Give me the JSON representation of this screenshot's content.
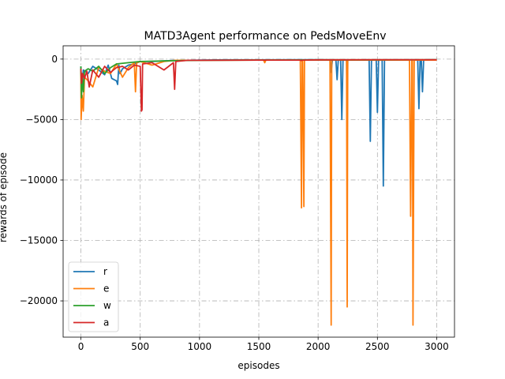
{
  "chart_data": {
    "type": "line",
    "title": "MATD3Agent performance on PedsMoveEnv",
    "xlabel": "episodes",
    "ylabel": "rewards of episode",
    "xlim": [
      -150,
      3150
    ],
    "ylim": [
      -23000,
      1100
    ],
    "xticks": [
      0,
      500,
      1000,
      1500,
      2000,
      2500,
      3000
    ],
    "yticks": [
      0,
      -5000,
      -10000,
      -15000,
      -20000
    ],
    "grid": true,
    "grid_style": "dashdot",
    "legend_position": "lower-left",
    "series": [
      {
        "name": "r",
        "color": "#1f77b4",
        "x": [
          0,
          5,
          20,
          60,
          100,
          150,
          200,
          230,
          260,
          300,
          310,
          320,
          330,
          350,
          400,
          450,
          500,
          600,
          700,
          800,
          900,
          1000,
          1200,
          1500,
          1800,
          2000,
          2100,
          2110,
          2120,
          2150,
          2160,
          2170,
          2190,
          2200,
          2210,
          2240,
          2245,
          2250,
          2300,
          2400,
          2430,
          2440,
          2450,
          2490,
          2500,
          2510,
          2540,
          2550,
          2560,
          2600,
          2700,
          2800,
          2840,
          2850,
          2860,
          2870,
          2880,
          2890,
          2950,
          3000
        ],
        "y": [
          -600,
          -2600,
          -900,
          -1200,
          -600,
          -900,
          -1300,
          -500,
          -1600,
          -1800,
          -2100,
          -500,
          -1200,
          -800,
          -500,
          -400,
          -200,
          -200,
          -150,
          -100,
          -100,
          -80,
          -60,
          -60,
          -50,
          -50,
          -60,
          -1100,
          -60,
          -60,
          -1700,
          -60,
          -60,
          -5000,
          -60,
          -60,
          -5800,
          -60,
          -80,
          -60,
          -60,
          -6800,
          -60,
          -60,
          -4400,
          -60,
          -60,
          -10500,
          -60,
          -60,
          -60,
          -60,
          -60,
          -4100,
          -60,
          -60,
          -2700,
          -60,
          -50,
          -50
        ]
      },
      {
        "name": "e",
        "color": "#ff7f0e",
        "x": [
          0,
          2,
          10,
          20,
          30,
          60,
          100,
          150,
          200,
          250,
          300,
          350,
          400,
          450,
          460,
          470,
          500,
          600,
          700,
          800,
          1000,
          1500,
          1540,
          1550,
          1560,
          1800,
          1850,
          1860,
          1865,
          1870,
          1880,
          1885,
          1890,
          2000,
          2100,
          2110,
          2115,
          2120,
          2200,
          2240,
          2245,
          2250,
          2260,
          2300,
          2700,
          2770,
          2780,
          2790,
          2795,
          2800,
          2810,
          2900,
          3000
        ],
        "y": [
          -800,
          -5000,
          -3000,
          -4300,
          -1500,
          -1800,
          -2300,
          -700,
          -1000,
          -1200,
          -400,
          -1500,
          -700,
          -300,
          -2700,
          -300,
          -200,
          -500,
          -200,
          -100,
          -100,
          -80,
          -80,
          -300,
          -80,
          -80,
          -80,
          -12300,
          -80,
          -80,
          -12200,
          -80,
          -80,
          -80,
          -80,
          -22000,
          -80,
          -80,
          -80,
          -80,
          -20500,
          -80,
          -80,
          -80,
          -80,
          -80,
          -13000,
          -80,
          -80,
          -22000,
          -80,
          -80,
          -80
        ]
      },
      {
        "name": "w",
        "color": "#2ca02c",
        "x": [
          0,
          5,
          10,
          20,
          30,
          60,
          100,
          150,
          200,
          250,
          300,
          400,
          500,
          700,
          1000,
          1500,
          2000,
          2500,
          3000
        ],
        "y": [
          -600,
          -3200,
          -1200,
          -2700,
          -1000,
          -800,
          -1000,
          -600,
          -1200,
          -700,
          -400,
          -300,
          -200,
          -150,
          -100,
          -80,
          -60,
          -60,
          -50
        ]
      },
      {
        "name": "a",
        "color": "#d62728",
        "x": [
          0,
          5,
          15,
          30,
          50,
          70,
          100,
          150,
          200,
          250,
          300,
          350,
          400,
          450,
          500,
          510,
          515,
          520,
          600,
          700,
          780,
          790,
          800,
          900,
          1000,
          1500,
          1850,
          1860,
          1870,
          2000,
          2500,
          3000
        ],
        "y": [
          -800,
          -2000,
          -1200,
          -1600,
          -1000,
          -2300,
          -900,
          -1500,
          -600,
          -1100,
          -700,
          -600,
          -900,
          -500,
          -600,
          -4300,
          -4200,
          -400,
          -300,
          -900,
          -300,
          -2500,
          -200,
          -100,
          -100,
          -80,
          -80,
          -120,
          -80,
          -60,
          -50,
          -50
        ]
      }
    ]
  }
}
